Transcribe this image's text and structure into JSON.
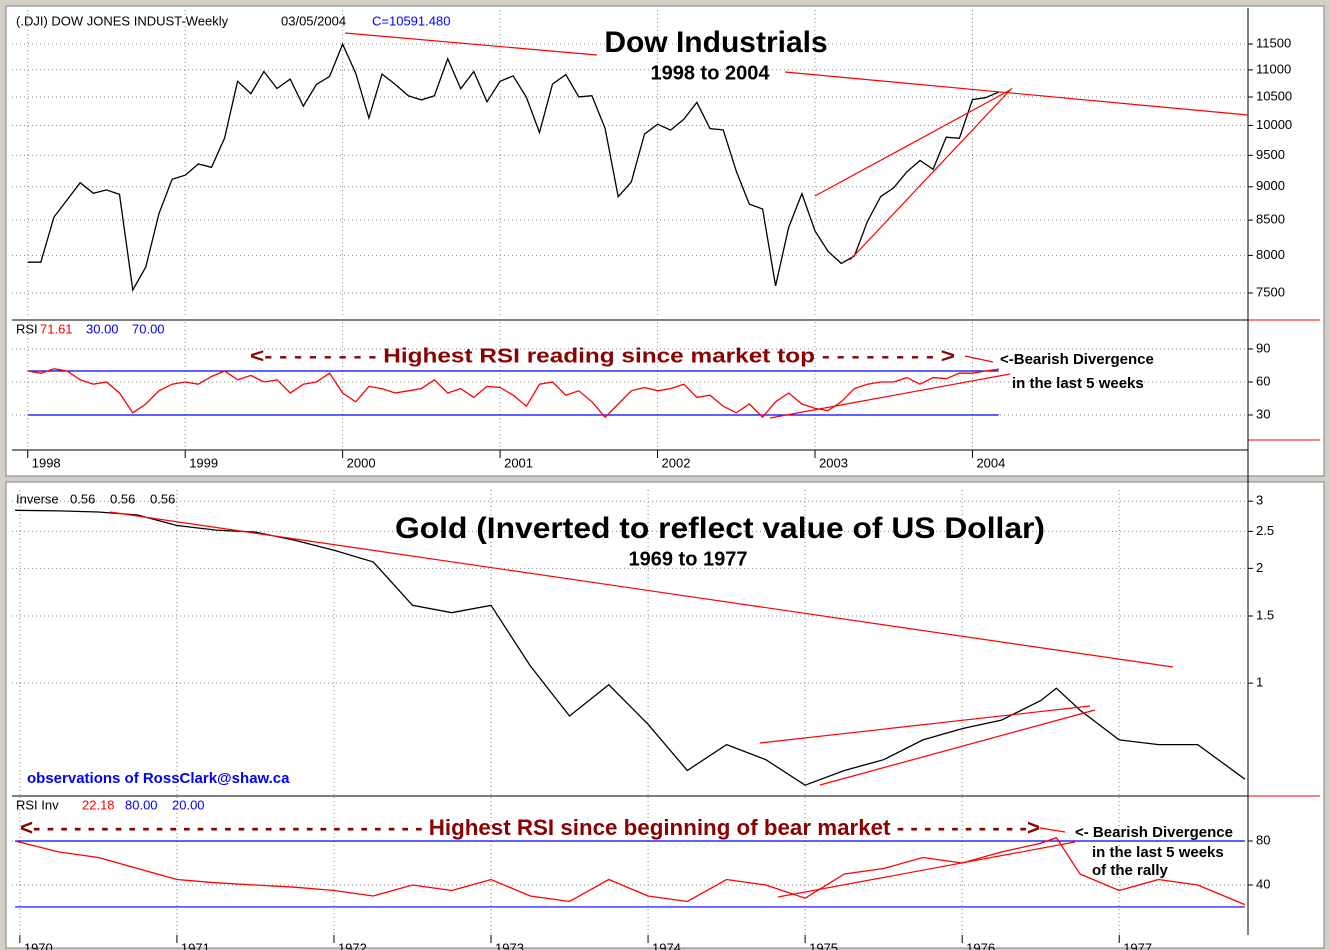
{
  "chart_data": [
    {
      "type": "line",
      "title": "(.DJI) DOW JONES INDUST-Weekly",
      "date": "03/05/2004",
      "close_label": "C=10591.480",
      "color": "#000000",
      "log_y": true,
      "grid": true,
      "x": [
        1998,
        1998.083,
        1998.167,
        1998.25,
        1998.333,
        1998.417,
        1998.5,
        1998.583,
        1998.667,
        1998.75,
        1998.833,
        1998.917,
        1999,
        1999.083,
        1999.167,
        1999.25,
        1999.333,
        1999.417,
        1999.5,
        1999.583,
        1999.667,
        1999.75,
        1999.833,
        1999.917,
        2000,
        2000.083,
        2000.167,
        2000.25,
        2000.333,
        2000.417,
        2000.5,
        2000.583,
        2000.667,
        2000.75,
        2000.833,
        2000.917,
        2001,
        2001.083,
        2001.167,
        2001.25,
        2001.333,
        2001.417,
        2001.5,
        2001.583,
        2001.667,
        2001.75,
        2001.833,
        2001.917,
        2002,
        2002.083,
        2002.167,
        2002.25,
        2002.333,
        2002.417,
        2002.5,
        2002.583,
        2002.667,
        2002.75,
        2002.833,
        2002.917,
        2003,
        2003.083,
        2003.167,
        2003.25,
        2003.333,
        2003.417,
        2003.5,
        2003.583,
        2003.667,
        2003.75,
        2003.833,
        2003.917,
        2004,
        2004.083,
        2004.167
      ],
      "values": [
        7908,
        7907,
        8546,
        8800,
        9063,
        8900,
        8952,
        8883,
        7539,
        7843,
        8592,
        9117,
        9181,
        9359,
        9307,
        9786,
        10789,
        10560,
        10971,
        10655,
        10829,
        10337,
        10729,
        10878,
        11497,
        10941,
        10128,
        10922,
        10734,
        10522,
        10448,
        10522,
        11215,
        10651,
        10971,
        10415,
        10788,
        10887,
        10495,
        9879,
        10735,
        10912,
        10502,
        10523,
        9950,
        8848,
        9075,
        9852,
        10022,
        9920,
        10106,
        10404,
        9946,
        9925,
        9243,
        8737,
        8664,
        7592,
        8397,
        8896,
        8342,
        8054,
        7891,
        7992,
        8480,
        8850,
        8985,
        9234,
        9416,
        9275,
        9801,
        9782,
        10454,
        10488,
        10591.48
      ],
      "xlim": [
        1997.9,
        2005.75
      ],
      "ylim": [
        7185,
        12192
      ],
      "yticks": [
        11500,
        11000,
        10500,
        10000,
        9500,
        9000,
        8500,
        8000,
        7500
      ]
    },
    {
      "type": "line",
      "title": "RSI",
      "color": "#ff0000",
      "level_color": "#0000ff",
      "grid": true,
      "x": [
        1998,
        1998.083,
        1998.167,
        1998.25,
        1998.333,
        1998.417,
        1998.5,
        1998.583,
        1998.667,
        1998.75,
        1998.833,
        1998.917,
        1999,
        1999.083,
        1999.167,
        1999.25,
        1999.333,
        1999.417,
        1999.5,
        1999.583,
        1999.667,
        1999.75,
        1999.833,
        1999.917,
        2000,
        2000.083,
        2000.167,
        2000.25,
        2000.333,
        2000.417,
        2000.5,
        2000.583,
        2000.667,
        2000.75,
        2000.833,
        2000.917,
        2001,
        2001.083,
        2001.167,
        2001.25,
        2001.333,
        2001.417,
        2001.5,
        2001.583,
        2001.667,
        2001.75,
        2001.833,
        2001.917,
        2002,
        2002.083,
        2002.167,
        2002.25,
        2002.333,
        2002.417,
        2002.5,
        2002.583,
        2002.667,
        2002.75,
        2002.833,
        2002.917,
        2003,
        2003.083,
        2003.167,
        2003.25,
        2003.333,
        2003.417,
        2003.5,
        2003.583,
        2003.667,
        2003.75,
        2003.833,
        2003.917,
        2004,
        2004.083,
        2004.167
      ],
      "values": [
        70,
        68,
        72,
        70,
        62,
        58,
        60,
        50,
        32,
        40,
        52,
        58,
        60,
        58,
        65,
        70,
        62,
        66,
        60,
        62,
        50,
        58,
        60,
        68,
        50,
        42,
        56,
        54,
        50,
        52,
        54,
        62,
        50,
        54,
        46,
        56,
        55,
        48,
        38,
        58,
        60,
        48,
        52,
        42,
        28,
        40,
        52,
        55,
        52,
        54,
        58,
        46,
        48,
        38,
        32,
        40,
        28,
        42,
        50,
        40,
        36,
        34,
        42,
        54,
        58,
        60,
        60,
        64,
        58,
        64,
        63,
        68,
        68,
        70,
        71.61
      ],
      "levels": [
        {
          "value": 30,
          "label": "30.00"
        },
        {
          "value": 70,
          "label": "70.00"
        }
      ],
      "xlim": [
        1997.9,
        2005.75
      ],
      "ylim": [
        -1.8,
        114.5
      ],
      "yticks": [
        90,
        60,
        30
      ],
      "xticks": [
        1998,
        1999,
        2000,
        2001,
        2002,
        2003,
        2004
      ]
    },
    {
      "type": "line",
      "title": "Inverse",
      "color": "#000000",
      "log_y": true,
      "grid": true,
      "x": [
        1969.97,
        1970.25,
        1970.5,
        1970.75,
        1971,
        1971.25,
        1971.5,
        1971.75,
        1972,
        1972.25,
        1972.5,
        1972.75,
        1973,
        1973.25,
        1973.5,
        1973.75,
        1974,
        1974.25,
        1974.5,
        1974.75,
        1975,
        1975.25,
        1975.5,
        1975.75,
        1976,
        1976.25,
        1976.5,
        1976.6,
        1976.75,
        1977,
        1977.25,
        1977.5,
        1977.8
      ],
      "values": [
        2.84,
        2.83,
        2.81,
        2.76,
        2.59,
        2.52,
        2.49,
        2.37,
        2.23,
        2.08,
        1.6,
        1.53,
        1.6,
        1.11,
        0.82,
        0.99,
        0.78,
        0.59,
        0.69,
        0.63,
        0.54,
        0.59,
        0.63,
        0.71,
        0.76,
        0.8,
        0.9,
        0.97,
        0.85,
        0.71,
        0.69,
        0.69,
        0.56
      ],
      "xlim": [
        1969.95,
        1977.82
      ],
      "ylim": [
        0.509,
        3.21
      ],
      "yticks": [
        3,
        2.5,
        2,
        1.5,
        1
      ]
    },
    {
      "type": "line",
      "title": "RSI Inv",
      "color": "#ff0000",
      "level_color": "#0000ff",
      "grid": true,
      "x": [
        1969.97,
        1970.25,
        1970.5,
        1970.75,
        1971,
        1971.25,
        1971.5,
        1971.75,
        1972,
        1972.25,
        1972.5,
        1972.75,
        1973,
        1973.25,
        1973.5,
        1973.75,
        1974,
        1974.25,
        1974.5,
        1974.75,
        1975,
        1975.25,
        1975.5,
        1975.75,
        1976,
        1976.25,
        1976.5,
        1976.6,
        1976.75,
        1977,
        1977.25,
        1977.5,
        1977.8
      ],
      "values": [
        80,
        70,
        65,
        55,
        45,
        42,
        40,
        38,
        35,
        30,
        40,
        35,
        45,
        30,
        25,
        45,
        30,
        25,
        45,
        40,
        28,
        50,
        55,
        65,
        60,
        70,
        78,
        83,
        50,
        35,
        45,
        40,
        22.18
      ],
      "levels": [
        {
          "value": 80,
          "label": "80.00"
        },
        {
          "value": 20,
          "label": "20.00"
        }
      ],
      "xlim": [
        1969.95,
        1977.82
      ],
      "ylim": [
        -5.5,
        120
      ],
      "yticks": [
        80,
        40
      ],
      "xticks": [
        1970,
        1971,
        1972,
        1973,
        1974,
        1975,
        1976,
        1977
      ]
    }
  ],
  "annotations": [
    "Dow Industrials",
    "1998 to 2004",
    "<- - - - - - - -  Highest RSI reading since market top  - - - - - - - - >",
    "<-Bearish Divergence",
    "in the last 5 weeks",
    "Gold (Inverted to reflect value of US Dollar)",
    "1969 to 1977",
    "observations of RossClark@shaw.ca",
    "<- - - - - - - - - - - - - - - - - - - - - - - - - - - - -  Highest RSI since beginning of bear market  - - - - - - - - - ->",
    "<- Bearish Divergence",
    "in the last 5 weeks",
    "of the rally"
  ]
}
